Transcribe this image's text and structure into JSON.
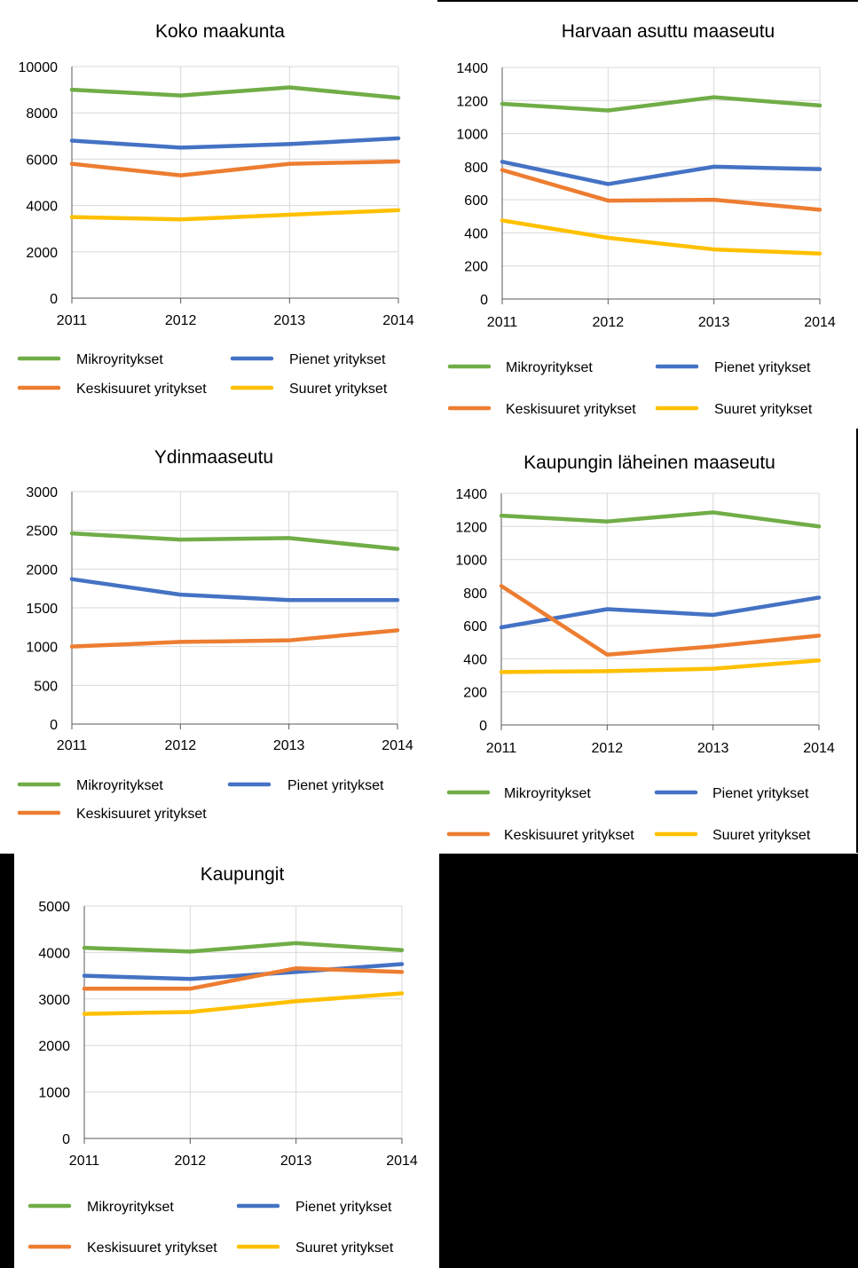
{
  "series_names": [
    "Mikroyritykset",
    "Pienet yritykset",
    "Keskisuuret yritykset",
    "Suuret yritykset"
  ],
  "colors": {
    "Mikroyritykset": "#70ad47",
    "Pienet yritykset": "#4472c4",
    "Keskisuuret yritykset": "#ed7d31",
    "Suuret yritykset": "#ffc000",
    "grid": "#d9d9d9",
    "axis": "#595959"
  },
  "chart_data": [
    {
      "type": "line",
      "title": "Koko maakunta",
      "categories": [
        "2011",
        "2012",
        "2013",
        "2014"
      ],
      "ylim": [
        0,
        10000
      ],
      "yticks": [
        0,
        2000,
        4000,
        6000,
        8000,
        10000
      ],
      "legend": "bottom",
      "series": [
        {
          "name": "Mikroyritykset",
          "values": [
            9000,
            8750,
            9100,
            8650
          ]
        },
        {
          "name": "Pienet yritykset",
          "values": [
            6800,
            6500,
            6650,
            6900
          ]
        },
        {
          "name": "Keskisuuret yritykset",
          "values": [
            5800,
            5300,
            5800,
            5900
          ]
        },
        {
          "name": "Suuret yritykset",
          "values": [
            3500,
            3400,
            3600,
            3800
          ]
        }
      ]
    },
    {
      "type": "line",
      "title": "Harvaan asuttu maaseutu",
      "categories": [
        "2011",
        "2012",
        "2013",
        "2014"
      ],
      "ylim": [
        0,
        1400
      ],
      "yticks": [
        0,
        200,
        400,
        600,
        800,
        1000,
        1200,
        1400
      ],
      "legend": "bottom",
      "series": [
        {
          "name": "Mikroyritykset",
          "values": [
            1180,
            1140,
            1220,
            1170
          ]
        },
        {
          "name": "Pienet yritykset",
          "values": [
            830,
            695,
            800,
            785
          ]
        },
        {
          "name": "Keskisuuret yritykset",
          "values": [
            780,
            595,
            600,
            540
          ]
        },
        {
          "name": "Suuret yritykset",
          "values": [
            475,
            370,
            300,
            275
          ]
        }
      ]
    },
    {
      "type": "line",
      "title": "Ydinmaaseutu",
      "categories": [
        "2011",
        "2012",
        "2013",
        "2014"
      ],
      "ylim": [
        0,
        3000
      ],
      "yticks": [
        0,
        500,
        1000,
        1500,
        2000,
        2500,
        3000
      ],
      "legend": "bottom",
      "series": [
        {
          "name": "Mikroyritykset",
          "values": [
            2460,
            2380,
            2400,
            2260
          ]
        },
        {
          "name": "Pienet yritykset",
          "values": [
            1870,
            1670,
            1600,
            1600
          ]
        },
        {
          "name": "Keskisuuret yritykset",
          "values": [
            1000,
            1060,
            1080,
            1210
          ]
        }
      ]
    },
    {
      "type": "line",
      "title": "Kaupungin läheinen maaseutu",
      "categories": [
        "2011",
        "2012",
        "2013",
        "2014"
      ],
      "ylim": [
        0,
        1400
      ],
      "yticks": [
        0,
        200,
        400,
        600,
        800,
        1000,
        1200,
        1400
      ],
      "legend": "bottom",
      "series": [
        {
          "name": "Mikroyritykset",
          "values": [
            1265,
            1230,
            1285,
            1200
          ]
        },
        {
          "name": "Pienet yritykset",
          "values": [
            590,
            700,
            665,
            770
          ]
        },
        {
          "name": "Keskisuuret yritykset",
          "values": [
            840,
            425,
            475,
            540
          ]
        },
        {
          "name": "Suuret yritykset",
          "values": [
            320,
            325,
            340,
            390
          ]
        }
      ]
    },
    {
      "type": "line",
      "title": "Kaupungit",
      "categories": [
        "2011",
        "2012",
        "2013",
        "2014"
      ],
      "ylim": [
        0,
        5000
      ],
      "yticks": [
        0,
        1000,
        2000,
        3000,
        4000,
        5000
      ],
      "legend": "bottom",
      "series": [
        {
          "name": "Mikroyritykset",
          "values": [
            4100,
            4020,
            4200,
            4050
          ]
        },
        {
          "name": "Pienet yritykset",
          "values": [
            3500,
            3430,
            3580,
            3750
          ]
        },
        {
          "name": "Keskisuuret yritykset",
          "values": [
            3220,
            3220,
            3660,
            3580
          ]
        },
        {
          "name": "Suuret yritykset",
          "values": [
            2680,
            2720,
            2950,
            3120
          ]
        }
      ]
    }
  ]
}
